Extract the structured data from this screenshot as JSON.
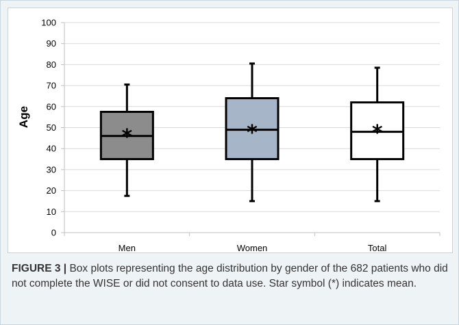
{
  "chart_data": {
    "type": "box",
    "title": "",
    "xlabel": "",
    "ylabel": "Age",
    "ylim": [
      0,
      100
    ],
    "yticks": [
      0,
      10,
      20,
      30,
      40,
      50,
      60,
      70,
      80,
      90,
      100
    ],
    "grid": "horizontal",
    "categories": [
      "Men",
      "Women",
      "Total"
    ],
    "boxes": [
      {
        "category": "Men",
        "min": 17.5,
        "q1": 35,
        "median": 46,
        "q3": 57.5,
        "max": 70.5,
        "mean": 46.5,
        "color": "#8c8c8c"
      },
      {
        "category": "Women",
        "min": 15,
        "q1": 35,
        "median": 49,
        "q3": 64,
        "max": 80.5,
        "mean": 48.5,
        "color": "#a7b5c8"
      },
      {
        "category": "Total",
        "min": 15,
        "q1": 35,
        "median": 48,
        "q3": 62,
        "max": 78.5,
        "mean": 48.5,
        "color": "#ffffff"
      }
    ],
    "mean_marker": "*"
  },
  "caption": {
    "label": "FIGURE 3 |",
    "text": " Box plots representing the age distribution by gender of the 682 patients who did not complete the WISE or did not consent to data use. Star symbol (*) indicates mean."
  }
}
